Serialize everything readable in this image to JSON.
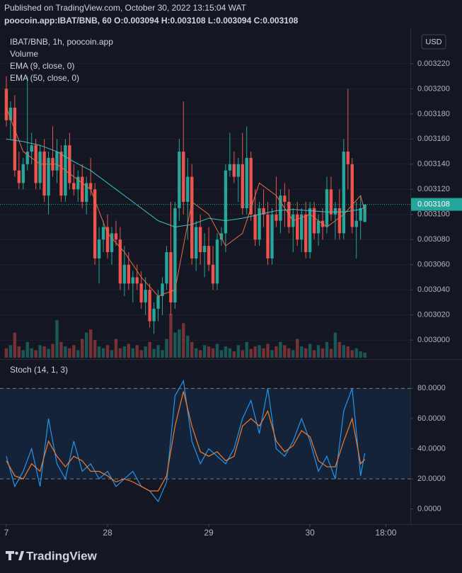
{
  "header": {
    "published": "Published on TradingView.com, October 30, 2022 13:15:04 WAT",
    "symbol_line": "poocoin.app:IBAT/BNB, 60 O:0.003094 H:0.003108 L:0.003094 C:0.003108"
  },
  "footer": {
    "brand": "TradingView"
  },
  "chart_data": [
    {
      "type": "candlestick",
      "title": "IBAT/BNB, 1h, poocoin.app",
      "currency": "USD",
      "up_color": "#26a69a",
      "down_color": "#ef5350",
      "xlim": [
        -1.5,
        95.8
      ],
      "x": [
        0,
        1,
        2,
        3,
        4,
        5,
        6,
        7,
        8,
        9,
        10,
        11,
        12,
        13,
        14,
        15,
        16,
        17,
        18,
        19,
        20,
        21,
        22,
        23,
        24,
        25,
        26,
        27,
        28,
        29,
        30,
        31,
        32,
        33,
        34,
        35,
        36,
        37,
        38,
        39,
        40,
        41,
        42,
        43,
        44,
        45,
        46,
        47,
        48,
        49,
        50,
        51,
        52,
        53,
        54,
        55,
        56,
        57,
        58,
        59,
        60,
        61,
        62,
        63,
        64,
        65,
        66,
        67,
        68,
        69,
        70,
        71,
        72,
        73,
        74,
        75,
        76,
        77,
        78,
        79,
        80,
        81,
        82,
        83,
        84,
        85
      ],
      "open": [
        0.0032,
        0.003175,
        0.003185,
        0.003135,
        0.003125,
        0.00314,
        0.00315,
        0.003155,
        0.003125,
        0.00315,
        0.003115,
        0.003145,
        0.003135,
        0.00315,
        0.003115,
        0.003155,
        0.003125,
        0.00312,
        0.00313,
        0.00311,
        0.003125,
        0.00312,
        0.003065,
        0.00308,
        0.00309,
        0.00307,
        0.003085,
        0.00308,
        0.003045,
        0.00306,
        0.003045,
        0.00305,
        0.003045,
        0.00303,
        0.00304,
        0.003015,
        0.003025,
        0.003035,
        0.003045,
        0.00307,
        0.00303,
        0.003105,
        0.00315,
        0.00311,
        0.00313,
        0.003065,
        0.00309,
        0.00307,
        0.003075,
        0.00306,
        0.003045,
        0.00308,
        0.003085,
        0.003135,
        0.00314,
        0.00313,
        0.00314,
        0.003105,
        0.003145,
        0.0031,
        0.00308,
        0.003105,
        0.0031,
        0.003065,
        0.0031,
        0.003095,
        0.003115,
        0.00311,
        0.00309,
        0.0031,
        0.00308,
        0.0031,
        0.00307,
        0.003105,
        0.003085,
        0.003095,
        0.00309,
        0.00312,
        0.0031,
        0.003105,
        0.003085,
        0.00315,
        0.00314,
        0.00309,
        0.003095,
        0.003094
      ],
      "high": [
        0.00321,
        0.00319,
        0.003195,
        0.00315,
        0.003145,
        0.00321,
        0.003165,
        0.00316,
        0.003155,
        0.00316,
        0.00315,
        0.00317,
        0.00316,
        0.003155,
        0.00316,
        0.003165,
        0.00314,
        0.003135,
        0.00314,
        0.00313,
        0.003145,
        0.003125,
        0.00309,
        0.003095,
        0.0031,
        0.00309,
        0.003095,
        0.00309,
        0.003075,
        0.00307,
        0.003055,
        0.00306,
        0.003055,
        0.00305,
        0.003045,
        0.00303,
        0.00304,
        0.00305,
        0.003075,
        0.00311,
        0.00311,
        0.00316,
        0.00319,
        0.003145,
        0.00314,
        0.003095,
        0.0031,
        0.003085,
        0.00309,
        0.003075,
        0.003085,
        0.00309,
        0.00314,
        0.003165,
        0.00315,
        0.003145,
        0.003165,
        0.00317,
        0.00315,
        0.00312,
        0.00311,
        0.00312,
        0.00311,
        0.003105,
        0.00313,
        0.00312,
        0.003125,
        0.00312,
        0.003105,
        0.00311,
        0.003105,
        0.00311,
        0.00311,
        0.00311,
        0.0031,
        0.003105,
        0.00313,
        0.00313,
        0.00311,
        0.00312,
        0.00316,
        0.0032,
        0.003145,
        0.00311,
        0.003115,
        0.003108
      ],
      "low": [
        0.00317,
        0.00316,
        0.00313,
        0.00312,
        0.00312,
        0.003135,
        0.00314,
        0.00312,
        0.00312,
        0.00311,
        0.0031,
        0.00313,
        0.003125,
        0.00311,
        0.00311,
        0.00312,
        0.003115,
        0.00311,
        0.003105,
        0.0031,
        0.003115,
        0.00306,
        0.003045,
        0.00307,
        0.003065,
        0.00306,
        0.003075,
        0.00304,
        0.003035,
        0.00304,
        0.00303,
        0.00304,
        0.003025,
        0.00302,
        0.00301,
        0.003005,
        0.003015,
        0.00302,
        0.00304,
        0.00302,
        0.003025,
        0.003095,
        0.0031,
        0.00308,
        0.00306,
        0.003055,
        0.00306,
        0.00305,
        0.003055,
        0.00304,
        0.00304,
        0.003075,
        0.00307,
        0.00313,
        0.003125,
        0.00311,
        0.0031,
        0.0031,
        0.003095,
        0.003075,
        0.003075,
        0.00309,
        0.00306,
        0.00306,
        0.00309,
        0.003085,
        0.00309,
        0.003085,
        0.00307,
        0.003075,
        0.00307,
        0.003065,
        0.003065,
        0.00308,
        0.003075,
        0.00308,
        0.003085,
        0.003095,
        0.00308,
        0.00308,
        0.00308,
        0.00312,
        0.003085,
        0.003065,
        0.00308,
        0.003094
      ],
      "close": [
        0.003175,
        0.003185,
        0.003135,
        0.003125,
        0.00314,
        0.00315,
        0.003155,
        0.003125,
        0.00315,
        0.003115,
        0.003145,
        0.003135,
        0.00315,
        0.003115,
        0.003155,
        0.003125,
        0.00312,
        0.00313,
        0.00311,
        0.003125,
        0.00312,
        0.003065,
        0.00308,
        0.00309,
        0.00307,
        0.003085,
        0.00308,
        0.003045,
        0.00306,
        0.003045,
        0.00305,
        0.003045,
        0.00303,
        0.00304,
        0.003015,
        0.003025,
        0.003035,
        0.003045,
        0.00307,
        0.00303,
        0.003105,
        0.00315,
        0.00311,
        0.00313,
        0.003065,
        0.00309,
        0.00307,
        0.003075,
        0.00306,
        0.003045,
        0.00308,
        0.003085,
        0.003135,
        0.00314,
        0.00313,
        0.00314,
        0.003105,
        0.003145,
        0.0031,
        0.00308,
        0.003105,
        0.0031,
        0.003065,
        0.0031,
        0.003095,
        0.003115,
        0.00311,
        0.00309,
        0.0031,
        0.00308,
        0.0031,
        0.00307,
        0.003105,
        0.003085,
        0.003095,
        0.00309,
        0.00312,
        0.0031,
        0.003105,
        0.003085,
        0.00315,
        0.00314,
        0.00309,
        0.003095,
        0.003105,
        0.003108
      ],
      "volume": {
        "name": "Volume",
        "values": [
          15,
          20,
          40,
          18,
          12,
          25,
          15,
          12,
          20,
          18,
          14,
          22,
          60,
          25,
          18,
          15,
          20,
          12,
          30,
          40,
          45,
          28,
          18,
          15,
          20,
          12,
          30,
          15,
          18,
          22,
          15,
          20,
          12,
          18,
          25,
          14,
          20,
          12,
          30,
          70,
          40,
          45,
          55,
          35,
          25,
          15,
          12,
          20,
          18,
          15,
          22,
          12,
          18,
          15,
          10,
          20,
          12,
          25,
          14,
          18,
          20,
          15,
          22,
          12,
          18,
          25,
          20,
          15,
          12,
          30,
          18,
          15,
          22,
          12,
          20,
          15,
          25,
          14,
          40,
          25,
          20,
          18,
          12,
          15,
          10,
          8
        ]
      },
      "series": [
        {
          "name": "EMA (9, close, 0)",
          "color": "#f0674a",
          "x": [
            0,
            4,
            8,
            12,
            16,
            20,
            24,
            28,
            32,
            36,
            40,
            44,
            48,
            52,
            56,
            60,
            64,
            68,
            72,
            76,
            80,
            84,
            85
          ],
          "values": [
            0.003185,
            0.00315,
            0.00314,
            0.00314,
            0.00313,
            0.00312,
            0.003085,
            0.00307,
            0.00305,
            0.003035,
            0.00304,
            0.00311,
            0.0031,
            0.003075,
            0.003085,
            0.003125,
            0.003115,
            0.003095,
            0.0031,
            0.00309,
            0.0031,
            0.003115,
            0.003102
          ]
        },
        {
          "name": "EMA (50, close, 0)",
          "color": "#3cc3c9",
          "x": [
            0,
            4,
            8,
            12,
            16,
            20,
            24,
            28,
            32,
            36,
            40,
            44,
            48,
            52,
            56,
            60,
            64,
            68,
            72,
            76,
            80,
            84,
            85
          ],
          "values": [
            0.00316,
            0.003158,
            0.003155,
            0.00315,
            0.003142,
            0.003135,
            0.003125,
            0.003115,
            0.003105,
            0.003095,
            0.00309,
            0.003092,
            0.003097,
            0.003095,
            0.003097,
            0.0031,
            0.003103,
            0.003104,
            0.003103,
            0.003102,
            0.003102,
            0.003104,
            0.003106
          ]
        }
      ],
      "ylim": [
        0.002986,
        0.003247
      ],
      "yticks": [
        {
          "value": 0.003,
          "label": "0.003000"
        },
        {
          "value": 0.00302,
          "label": "0.003020"
        },
        {
          "value": 0.00304,
          "label": "0.003040"
        },
        {
          "value": 0.00306,
          "label": "0.003060"
        },
        {
          "value": 0.00308,
          "label": "0.003080"
        },
        {
          "value": 0.0031,
          "label": "0.003100"
        },
        {
          "value": 0.00312,
          "label": "0.003120"
        },
        {
          "value": 0.00314,
          "label": "0.003140"
        },
        {
          "value": 0.00316,
          "label": "0.003160"
        },
        {
          "value": 0.00318,
          "label": "0.003180"
        },
        {
          "value": 0.0032,
          "label": "0.003200"
        },
        {
          "value": 0.00322,
          "label": "0.003220"
        }
      ],
      "last_price": {
        "value": 0.003108,
        "label": "0.003108"
      },
      "grid": true
    },
    {
      "type": "line",
      "title": "Stoch (14, 1, 3)",
      "xlim": [
        -1.5,
        95.8
      ],
      "band": [
        20,
        80
      ],
      "series": [
        {
          "color": "#2196f3",
          "x": [
            0,
            2,
            4,
            6,
            8,
            10,
            12,
            14,
            16,
            18,
            20,
            22,
            24,
            26,
            28,
            30,
            32,
            34,
            36,
            38,
            40,
            42,
            44,
            46,
            48,
            50,
            52,
            54,
            56,
            58,
            60,
            62,
            64,
            66,
            68,
            70,
            72,
            74,
            76,
            78,
            80,
            82,
            84,
            85
          ],
          "values": [
            35,
            15,
            25,
            40,
            15,
            60,
            30,
            20,
            45,
            25,
            30,
            20,
            25,
            15,
            20,
            25,
            15,
            12,
            5,
            18,
            75,
            85,
            45,
            30,
            40,
            35,
            30,
            40,
            60,
            72,
            50,
            80,
            40,
            35,
            45,
            60,
            45,
            25,
            35,
            20,
            65,
            80,
            22,
            37
          ]
        },
        {
          "color": "#f57c2a",
          "x": [
            0,
            2,
            4,
            6,
            8,
            10,
            12,
            14,
            16,
            18,
            20,
            22,
            24,
            26,
            28,
            30,
            32,
            34,
            36,
            38,
            40,
            42,
            44,
            46,
            48,
            50,
            52,
            54,
            56,
            58,
            60,
            62,
            64,
            66,
            68,
            70,
            72,
            74,
            76,
            78,
            80,
            82,
            84,
            85
          ],
          "values": [
            32,
            22,
            20,
            30,
            25,
            45,
            35,
            28,
            35,
            32,
            25,
            25,
            22,
            18,
            20,
            18,
            15,
            12,
            12,
            22,
            55,
            78,
            55,
            38,
            35,
            38,
            32,
            35,
            55,
            60,
            55,
            65,
            45,
            38,
            42,
            52,
            48,
            32,
            28,
            28,
            45,
            60,
            30,
            33
          ]
        }
      ],
      "ylim": [
        -10,
        98
      ],
      "yticks": [
        {
          "value": 0,
          "label": "0.0000"
        },
        {
          "value": 20,
          "label": "20.0000"
        },
        {
          "value": 40,
          "label": "40.0000"
        },
        {
          "value": 60,
          "label": "60.0000"
        },
        {
          "value": 80,
          "label": "80.0000"
        }
      ],
      "xticks": [
        {
          "value": 0,
          "label": "7"
        },
        {
          "value": 24,
          "label": "28"
        },
        {
          "value": 48,
          "label": "29"
        },
        {
          "value": 72,
          "label": "30"
        },
        {
          "value": 90,
          "label": "18:00"
        }
      ]
    }
  ]
}
